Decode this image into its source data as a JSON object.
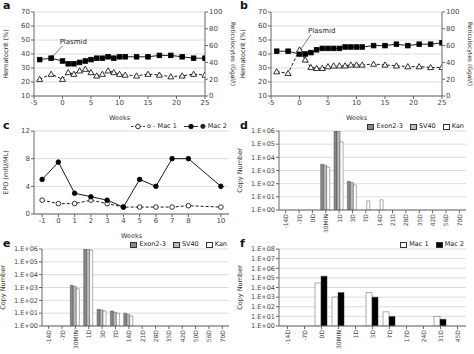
{
  "chart_data": [
    {
      "type": "line",
      "title": "a",
      "x": [
        -4,
        -2,
        0,
        1,
        2,
        3,
        4,
        5,
        6,
        7,
        8,
        9,
        10,
        11,
        13,
        15,
        17,
        19,
        21,
        23,
        25
      ],
      "series": [
        {
          "color": "black",
          "marker": "square",
          "line_style": "solid",
          "values": [
            36,
            37,
            35,
            33,
            33,
            34,
            35,
            36,
            37,
            37,
            38,
            37,
            38,
            38,
            38,
            38,
            39,
            39,
            38,
            37,
            37
          ]
        },
        {
          "color": "black",
          "marker": "triangle-open",
          "line_style": "dashed",
          "axis": "y2",
          "values": [
            20,
            26,
            20,
            28,
            26,
            30,
            32,
            28,
            24,
            26,
            30,
            28,
            26,
            25,
            24,
            26,
            25,
            23,
            24,
            26,
            25
          ]
        }
      ],
      "x_label": "Weeks",
      "y_label": "Hematocrit (%)",
      "y2_label": "Reticulocytes (Ggal/l)",
      "xlim": [
        -5,
        25
      ],
      "xticks": [
        -5,
        0,
        5,
        10,
        15,
        20,
        25
      ],
      "ylim": [
        10,
        70
      ],
      "yticks": [
        10,
        20,
        30,
        40,
        50,
        60,
        70
      ],
      "y2lim": [
        0,
        100
      ],
      "y2ticks": [
        0,
        20,
        40,
        60,
        80,
        100
      ],
      "annotations": [
        {
          "text": "Plasmid",
          "x": -2,
          "y": 37,
          "text_x": -0.5,
          "text_y": 47
        }
      ],
      "grid": true
    },
    {
      "type": "line",
      "title": "b",
      "x": [
        -4,
        -2,
        0,
        1,
        2,
        3,
        4,
        5,
        6,
        7,
        8,
        9,
        10,
        11,
        13,
        15,
        17,
        19,
        21,
        23,
        25
      ],
      "series": [
        {
          "color": "black",
          "marker": "square",
          "line_style": "solid",
          "values": [
            42,
            42,
            40,
            40,
            41,
            43,
            44,
            44,
            44,
            44,
            45,
            45,
            45,
            45,
            46,
            46,
            47,
            46,
            47,
            47,
            48
          ]
        },
        {
          "color": "black",
          "marker": "triangle-open",
          "line_style": "dashed",
          "axis": "y2",
          "values": [
            29,
            27,
            55,
            43,
            34,
            33,
            33,
            35,
            36,
            36,
            36,
            37,
            37,
            37,
            38,
            37,
            36,
            35,
            35,
            34,
            34
          ]
        }
      ],
      "x_label": "Weeks",
      "y_label": "Hematocrit (%)",
      "y2_label": "Reticulocytes (Ggal/l)",
      "xlim": [
        -5,
        25
      ],
      "xticks": [
        -5,
        0,
        5,
        10,
        15,
        20,
        25
      ],
      "ylim": [
        10,
        70
      ],
      "yticks": [
        10,
        20,
        30,
        40,
        50,
        60,
        70
      ],
      "y2lim": [
        0,
        100
      ],
      "y2ticks": [
        0,
        20,
        40,
        60,
        80,
        100
      ],
      "annotations": [
        {
          "text": "Plasmid",
          "x": 0,
          "y": 42,
          "text_x": 1.5,
          "text_y": 55
        }
      ],
      "grid": true
    },
    {
      "type": "line",
      "title": "c",
      "x": [
        -1,
        0,
        1,
        2,
        3,
        4,
        5,
        6,
        7,
        8,
        10
      ],
      "series": [
        {
          "name": "o - Mac 1",
          "color": "black",
          "marker": "circle-open",
          "line_style": "dashed",
          "values": [
            2.0,
            1.5,
            1.5,
            2.0,
            1.5,
            1.0,
            1.0,
            1.0,
            1.0,
            1.2,
            1.0
          ]
        },
        {
          "name": "● Mac 2",
          "color": "black",
          "marker": "circle",
          "line_style": "solid",
          "values": [
            5.0,
            7.5,
            3.0,
            2.5,
            2.0,
            1.0,
            5.0,
            4.0,
            8.0,
            8.0,
            4.0
          ]
        }
      ],
      "x_label": "Weeks",
      "y_label": "EPO (mIU/ML)",
      "xlim": [
        -1.5,
        10.5
      ],
      "xticks": [
        -1,
        0,
        1,
        2,
        3,
        4,
        5,
        6,
        7,
        8,
        10
      ],
      "ylim": [
        0,
        12
      ],
      "yticks": [
        0,
        4,
        8,
        12
      ],
      "legend": "upper right",
      "grid": true
    },
    {
      "type": "bar",
      "title": "d",
      "categories": [
        "-14D",
        "-7D",
        "0D",
        "30MIN",
        "1D",
        "3D",
        "7D",
        "14D",
        "21D",
        "28D",
        "35D",
        "42D",
        "56D",
        "70D"
      ],
      "series": [
        {
          "name": "Exon2-3",
          "color": "#888888",
          "values": [
            1.0,
            1.0,
            1.0,
            3000.0,
            1000000.0,
            150.0,
            1.0,
            1.0,
            1.0,
            1.0,
            1.0,
            1.0,
            1.0,
            1.0
          ]
        },
        {
          "name": "SV40",
          "color": "#bbbbbb",
          "values": [
            1.0,
            1.0,
            1.0,
            2500.0,
            1000000.0,
            120.0,
            1.0,
            1.0,
            1.0,
            1.0,
            1.0,
            1.0,
            1.0,
            1.0
          ]
        },
        {
          "name": "Kan",
          "color": "white",
          "values": [
            1.0,
            1.0,
            1.0,
            1800.0,
            150000.0,
            80.0,
            5.0,
            6.0,
            1.0,
            1.0,
            1.0,
            1.0,
            1.0,
            1.0
          ]
        }
      ],
      "y_label": "Copy Number",
      "log": "y",
      "ylim": [
        1,
        1000000
      ],
      "yticks": [
        {
          "value": 1,
          "label": "1.E+00"
        },
        {
          "value": 10,
          "label": "1.E+01"
        },
        {
          "value": 100,
          "label": "1.E+02"
        },
        {
          "value": 1000,
          "label": "1.E+03"
        },
        {
          "value": 10000,
          "label": "1.E+04"
        },
        {
          "value": 100000,
          "label": "1.E+05"
        },
        {
          "value": 1000000,
          "label": "1.E+06"
        }
      ],
      "legend": "upper right",
      "grid": true
    },
    {
      "type": "bar",
      "title": "e",
      "categories": [
        "-14D",
        "-7D",
        "30MIN",
        "1D",
        "3D",
        "7D",
        "14D",
        "21D",
        "28D",
        "35D",
        "42D",
        "50D",
        "56D",
        "70D"
      ],
      "series": [
        {
          "name": "Exon2-3",
          "color": "#888888",
          "values": [
            1.0,
            1.0,
            1500.0,
            1000000.0,
            20.0,
            15.0,
            10.0,
            1.0,
            1.0,
            1.0,
            1.0,
            1.0,
            1.0,
            1.0
          ]
        },
        {
          "name": "SV40",
          "color": "#bbbbbb",
          "values": [
            1.0,
            1.0,
            1200.0,
            1000000.0,
            18.0,
            12.0,
            8.0,
            1.0,
            1.0,
            1.0,
            1.0,
            1.0,
            1.0,
            1.0
          ]
        },
        {
          "name": "Kan",
          "color": "white",
          "values": [
            1.0,
            1.0,
            800.0,
            800000.0,
            15.0,
            10.0,
            6.0,
            1.0,
            1.0,
            1.0,
            1.0,
            1.0,
            1.0,
            1.0
          ]
        }
      ],
      "y_label": "Copy Number",
      "log": "y",
      "ylim": [
        1,
        1000000
      ],
      "yticks": [
        {
          "value": 1,
          "label": "1.E+00"
        },
        {
          "value": 10,
          "label": "1.E+01"
        },
        {
          "value": 100,
          "label": "1.E+02"
        },
        {
          "value": 1000,
          "label": "1.E+03"
        },
        {
          "value": 10000,
          "label": "1.E+04"
        },
        {
          "value": 100000,
          "label": "1.E+05"
        },
        {
          "value": 1000000,
          "label": "1.E+06"
        }
      ],
      "legend": "upper right",
      "grid": true
    },
    {
      "type": "bar",
      "title": "f",
      "categories": [
        "-14D",
        "-7D",
        "0D",
        "30MIN",
        "1D",
        "3D",
        "7D",
        "17D",
        "24D",
        "31D",
        "45D"
      ],
      "series": [
        {
          "name": "Mac 1",
          "color": "white",
          "values": [
            1.0,
            1.0,
            30000.0,
            1000.0,
            1.0,
            3000.0,
            30.0,
            1.0,
            1.0,
            10.0,
            1.0
          ]
        },
        {
          "name": "Mac 2",
          "color": "black",
          "values": [
            1.0,
            1.0,
            150000.0,
            3000.0,
            1.0,
            1000.0,
            10.0,
            1.0,
            1.0,
            5.0,
            1.0
          ]
        }
      ],
      "y_label": "Copy Number",
      "log": "y",
      "ylim": [
        1,
        100000000
      ],
      "yticks": [
        {
          "value": 1,
          "label": "1.E+00"
        },
        {
          "value": 10,
          "label": "1.E+01"
        },
        {
          "value": 100,
          "label": "1.E+02"
        },
        {
          "value": 1000,
          "label": "1.E+03"
        },
        {
          "value": 10000,
          "label": "1.E+04"
        },
        {
          "value": 100000,
          "label": "1.E+05"
        },
        {
          "value": 1000000,
          "label": "1.E+06"
        },
        {
          "value": 10000000,
          "label": "1.E+07"
        },
        {
          "value": 100000000,
          "label": "1.E+08"
        }
      ],
      "legend": "upper right",
      "grid": true
    }
  ]
}
